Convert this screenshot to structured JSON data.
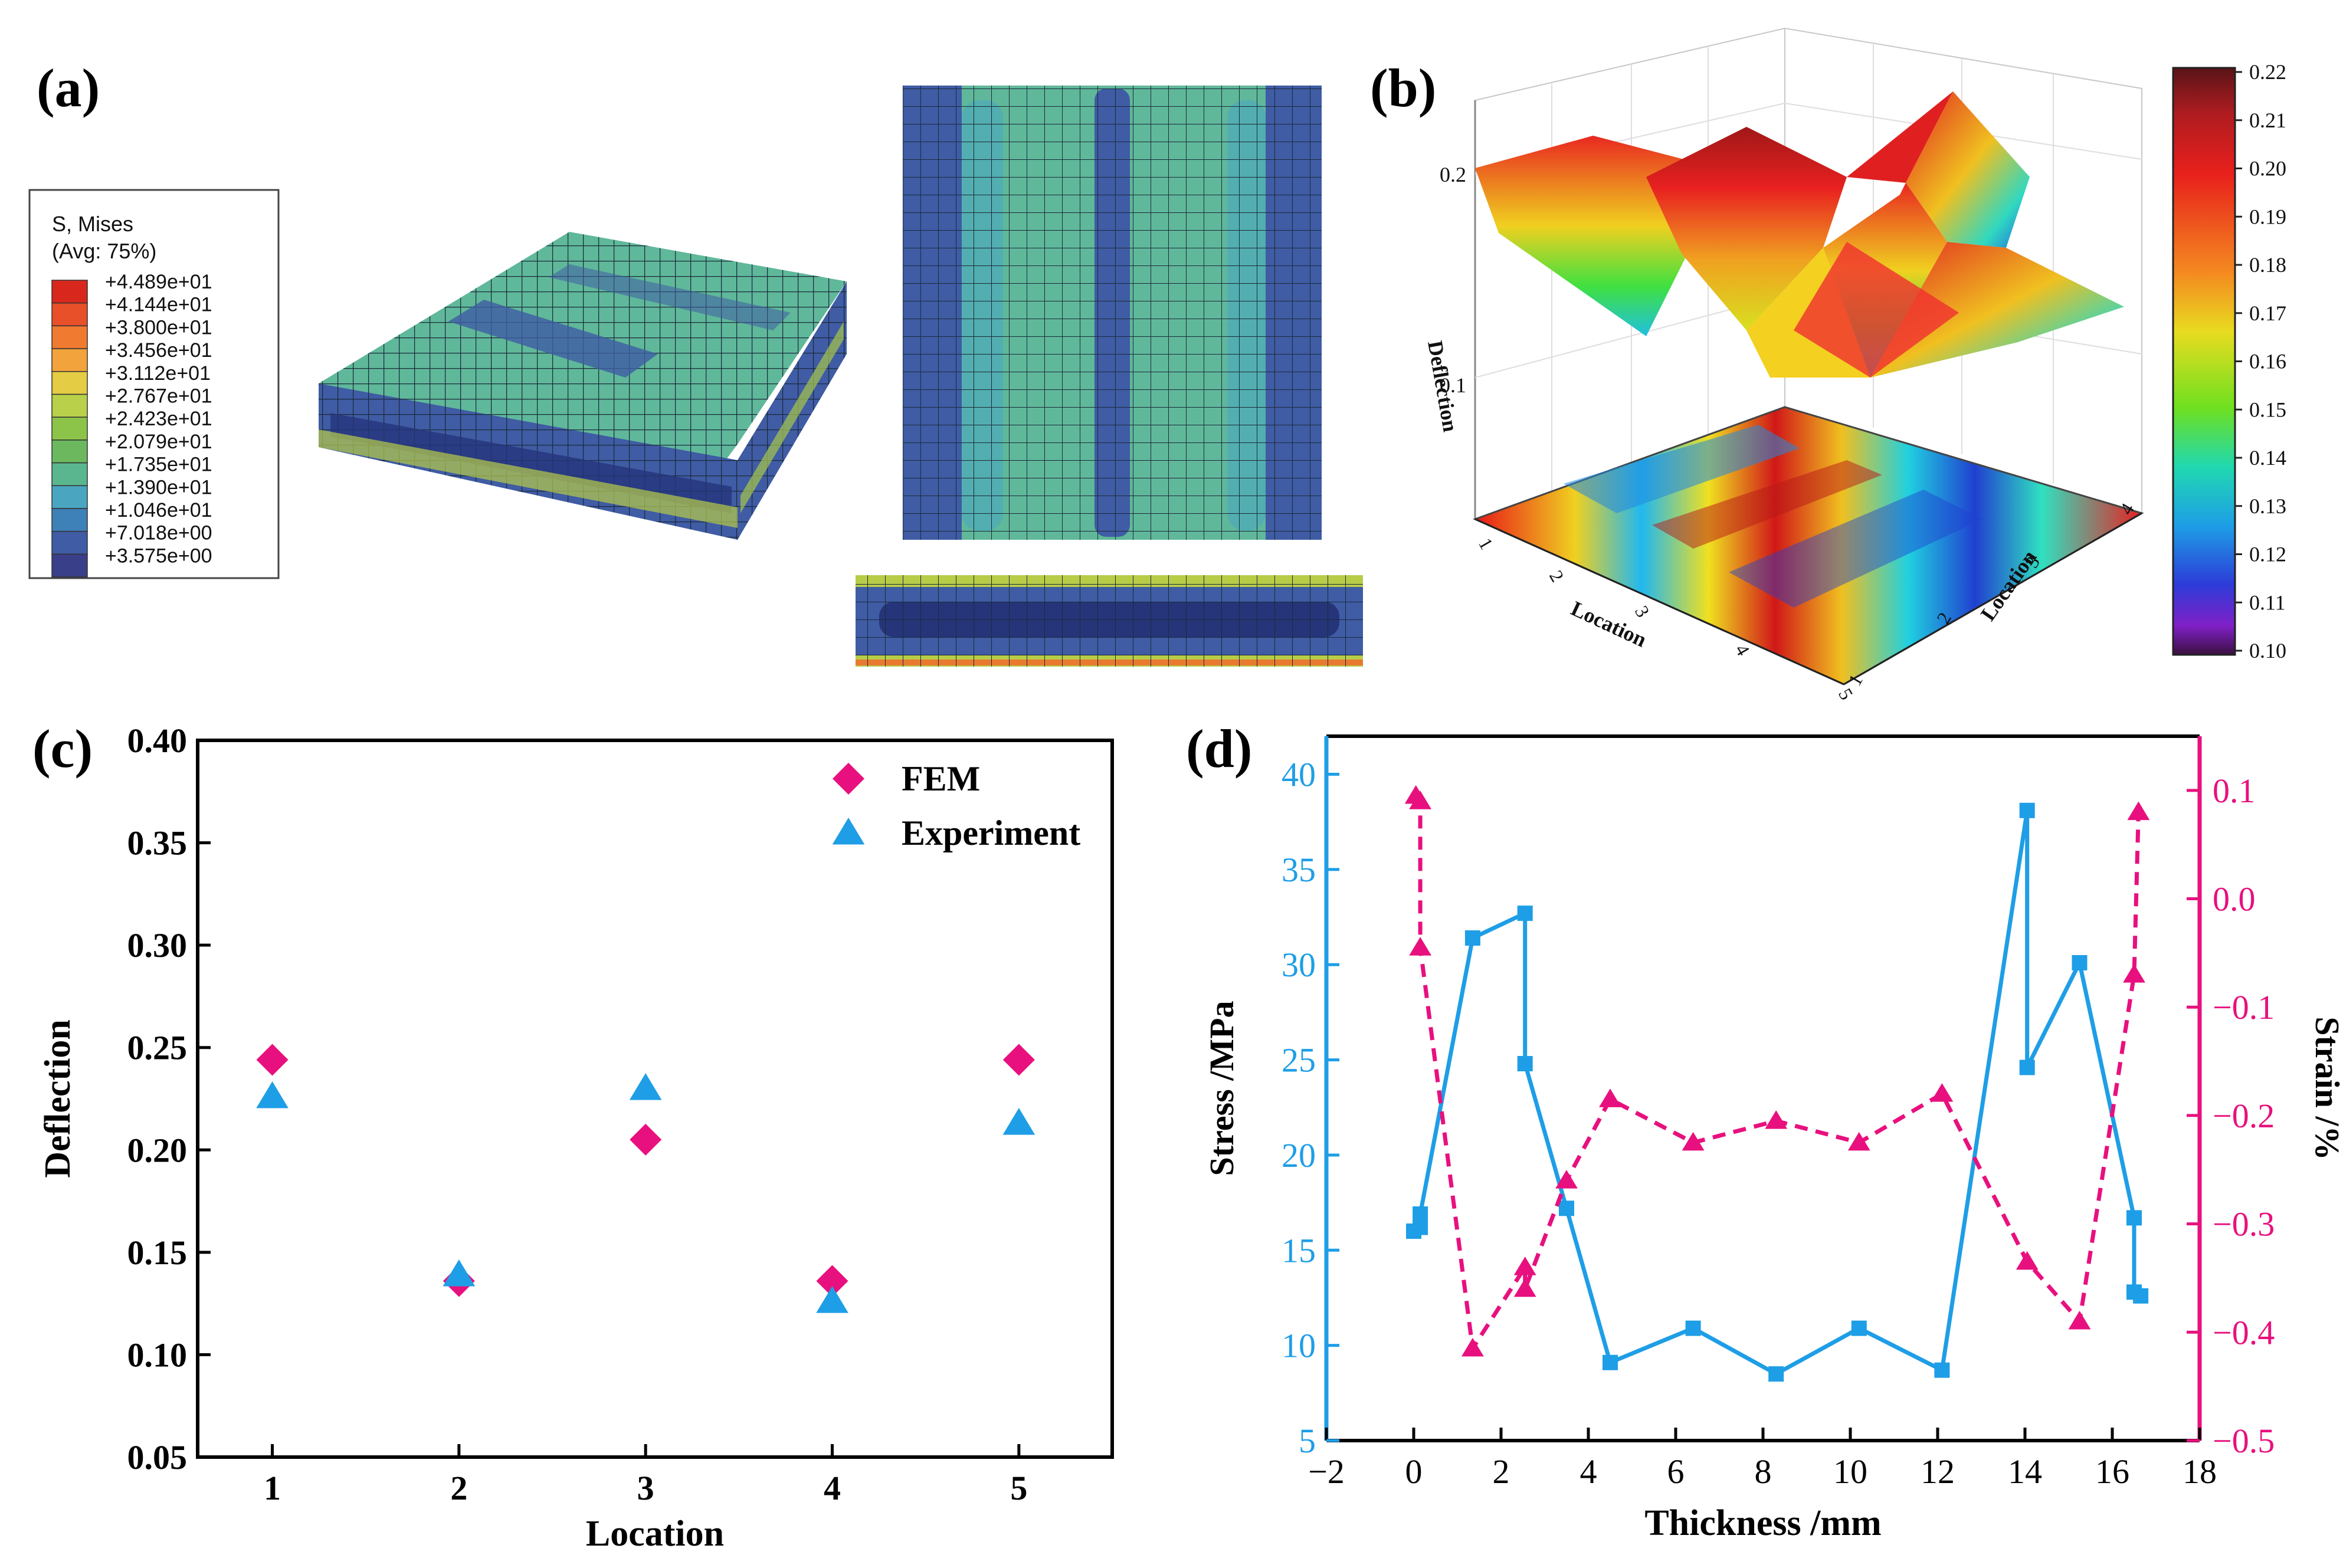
{
  "panels": {
    "a": {
      "tag": "(a)"
    },
    "b": {
      "tag": "(b)"
    },
    "c": {
      "tag": "(c)"
    },
    "d": {
      "tag": "(d)"
    }
  },
  "legend_a": {
    "title_line1": "S, Mises",
    "title_line2": "(Avg: 75%)",
    "entries": [
      {
        "label": "+4.489e+01",
        "color": "#d8281e"
      },
      {
        "label": "+4.144e+01",
        "color": "#e8502a"
      },
      {
        "label": "+3.800e+01",
        "color": "#f07a30"
      },
      {
        "label": "+3.456e+01",
        "color": "#f2a33c"
      },
      {
        "label": "+3.112e+01",
        "color": "#e4cc44"
      },
      {
        "label": "+2.767e+01",
        "color": "#b9d04a"
      },
      {
        "label": "+2.423e+01",
        "color": "#8cc44a"
      },
      {
        "label": "+2.079e+01",
        "color": "#6cb85e"
      },
      {
        "label": "+1.735e+01",
        "color": "#5ab68e"
      },
      {
        "label": "+1.390e+01",
        "color": "#4aa6c0"
      },
      {
        "label": "+1.046e+01",
        "color": "#3e80b8"
      },
      {
        "label": "+7.018e+00",
        "color": "#3f5ca4"
      },
      {
        "label": "+3.575e+00",
        "color": "#3a3f8a"
      }
    ]
  },
  "chart_data": [
    {
      "panel": "b",
      "type": "surface",
      "zlabel": "Deflection",
      "xlabel": "Location",
      "ylabel": "Location",
      "z_ticks": [
        "0.1",
        "0.2"
      ],
      "x_ticks": [
        "1",
        "2",
        "3",
        "4",
        "5"
      ],
      "y_ticks": [
        "1",
        "2",
        "3",
        "4"
      ],
      "colorbar": {
        "range": [
          0.1,
          0.22
        ],
        "ticks": [
          "0.22",
          "0.21",
          "0.20",
          "0.19",
          "0.18",
          "0.17",
          "0.16",
          "0.15",
          "0.14",
          "0.13",
          "0.12",
          "0.11",
          "0.10"
        ]
      }
    },
    {
      "panel": "c",
      "type": "scatter",
      "xlabel": "Location",
      "ylabel": "Deflection",
      "xlim": [
        0.6,
        5.5
      ],
      "ylim": [
        0.05,
        0.4
      ],
      "x_ticks": [
        1,
        2,
        3,
        4,
        5
      ],
      "y_ticks": [
        "0.05",
        "0.10",
        "0.15",
        "0.20",
        "0.25",
        "0.30",
        "0.35",
        "0.40"
      ],
      "legend_position": "top-right",
      "series": [
        {
          "name": "FEM",
          "marker": "diamond",
          "color": "#e8107e",
          "x": [
            1,
            2,
            3,
            4,
            5
          ],
          "y": [
            0.244,
            0.136,
            0.205,
            0.136,
            0.244
          ]
        },
        {
          "name": "Experiment",
          "marker": "triangle",
          "color": "#1e9ee6",
          "x": [
            1,
            2,
            3,
            4,
            5
          ],
          "y": [
            0.226,
            0.139,
            0.23,
            0.126,
            0.213
          ]
        }
      ]
    },
    {
      "panel": "d",
      "type": "line",
      "xlabel": "Thickness /mm",
      "ylabel_left": "Stress /MPa",
      "ylabel_right": "Strain /%",
      "xlim": [
        -2,
        18
      ],
      "ylim_left": [
        5,
        42
      ],
      "ylim_right": [
        -0.5,
        0.15
      ],
      "x_ticks": [
        -2,
        0,
        2,
        4,
        6,
        8,
        10,
        12,
        14,
        16,
        18
      ],
      "y_ticks_left": [
        5,
        10,
        15,
        20,
        25,
        30,
        35,
        40
      ],
      "y_ticks_right": [
        "-0.5",
        "-0.4",
        "-0.3",
        "-0.2",
        "-0.1",
        "0.0",
        "0.1"
      ],
      "series": [
        {
          "name": "Stress",
          "axis": "left",
          "style": "solid",
          "marker": "square",
          "color": "#1e9ee6",
          "x": [
            0,
            0.15,
            0.15,
            1.35,
            2.55,
            2.55,
            3.5,
            4.5,
            6.4,
            8.3,
            10.2,
            12.1,
            14.05,
            14.05,
            15.25,
            16.5,
            16.5,
            16.65
          ],
          "y": [
            16.0,
            16.2,
            16.9,
            31.4,
            32.7,
            24.8,
            17.2,
            9.1,
            10.9,
            8.5,
            10.9,
            8.7,
            38.1,
            24.6,
            30.1,
            16.7,
            12.8,
            12.6
          ]
        },
        {
          "name": "Strain",
          "axis": "right",
          "style": "dashed",
          "marker": "triangle",
          "color": "#e8107e",
          "x": [
            0.05,
            0.15,
            0.15,
            1.35,
            2.55,
            2.55,
            3.5,
            4.5,
            6.4,
            8.3,
            10.2,
            12.1,
            14.05,
            15.25,
            16.5,
            16.6
          ],
          "y": [
            0.095,
            0.09,
            -0.045,
            -0.415,
            -0.34,
            -0.36,
            -0.26,
            -0.185,
            -0.225,
            -0.205,
            -0.225,
            -0.18,
            -0.335,
            -0.39,
            -0.07,
            0.08
          ]
        }
      ]
    }
  ]
}
